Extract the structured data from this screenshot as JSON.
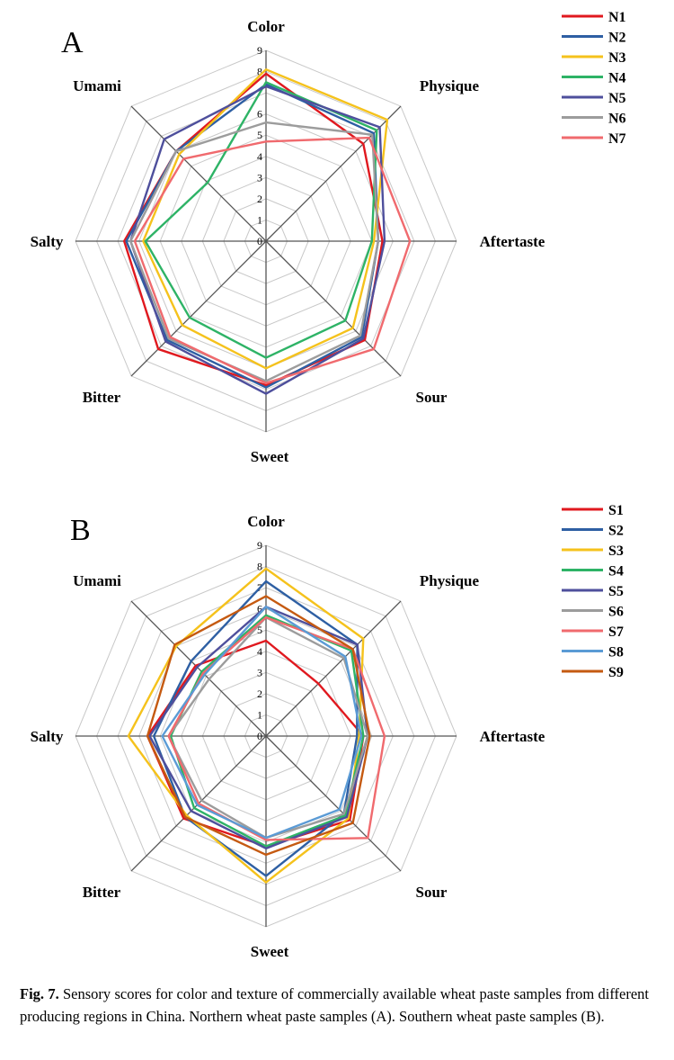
{
  "axes": [
    "Color",
    "Physique",
    "Aftertaste",
    "Sour",
    "Sweet",
    "Bitter",
    "Salty",
    "Umami"
  ],
  "ticks": [
    "0",
    "1",
    "2",
    "3",
    "4",
    "5",
    "6",
    "7",
    "8",
    "9"
  ],
  "caption": {
    "label": "Fig. 7.",
    "text": " Sensory scores for color and texture of commercially available wheat paste samples from different producing regions in China. Northern wheat paste samples (A). Southern wheat paste samples (B)."
  },
  "chart_data": [
    {
      "type": "radar",
      "panel": "A",
      "axes": [
        "Color",
        "Physique",
        "Aftertaste",
        "Sour",
        "Sweet",
        "Bitter",
        "Salty",
        "Umami"
      ],
      "rlim": [
        0,
        9
      ],
      "grid": true,
      "legend_position": "top-right",
      "series": [
        {
          "name": "N1",
          "color": "#e0191f",
          "values": [
            7.9,
            6.5,
            5.5,
            6.6,
            6.8,
            7.2,
            6.7,
            6.0
          ]
        },
        {
          "name": "N2",
          "color": "#2e5fa3",
          "values": [
            7.4,
            7.2,
            5.3,
            6.4,
            6.9,
            6.6,
            6.6,
            6.0
          ]
        },
        {
          "name": "N3",
          "color": "#f5c21c",
          "values": [
            8.1,
            8.1,
            5.1,
            5.8,
            6.0,
            5.6,
            5.8,
            5.8
          ]
        },
        {
          "name": "N4",
          "color": "#2eb366",
          "values": [
            7.5,
            7.4,
            5.0,
            5.3,
            5.5,
            5.1,
            5.7,
            3.9
          ]
        },
        {
          "name": "N5",
          "color": "#4e4f9c",
          "values": [
            7.3,
            7.6,
            5.6,
            6.5,
            7.2,
            6.7,
            6.4,
            6.8
          ]
        },
        {
          "name": "N6",
          "color": "#9c9c9c",
          "values": [
            5.6,
            7.1,
            5.3,
            6.3,
            6.6,
            6.5,
            6.4,
            6.0
          ]
        },
        {
          "name": "N7",
          "color": "#f06a6e",
          "values": [
            4.7,
            6.9,
            6.8,
            7.2,
            6.7,
            6.4,
            6.2,
            5.5
          ]
        }
      ]
    },
    {
      "type": "radar",
      "panel": "B",
      "axes": [
        "Color",
        "Physique",
        "Aftertaste",
        "Sour",
        "Sweet",
        "Bitter",
        "Salty",
        "Umami"
      ],
      "rlim": [
        0,
        9
      ],
      "grid": true,
      "legend_position": "top-right",
      "series": [
        {
          "name": "S1",
          "color": "#e0191f",
          "values": [
            4.5,
            3.5,
            4.6,
            5.6,
            5.2,
            5.5,
            5.6,
            4.7
          ]
        },
        {
          "name": "S2",
          "color": "#2e5fa3",
          "values": [
            7.3,
            6.1,
            4.3,
            5.2,
            6.6,
            5.4,
            5.3,
            5.0
          ]
        },
        {
          "name": "S3",
          "color": "#f5c21c",
          "values": [
            7.9,
            6.5,
            4.4,
            5.5,
            6.9,
            5.3,
            6.5,
            6.0
          ]
        },
        {
          "name": "S4",
          "color": "#2eb366",
          "values": [
            5.7,
            5.7,
            4.6,
            5.3,
            5.2,
            4.8,
            4.5,
            4.3
          ]
        },
        {
          "name": "S5",
          "color": "#4e4f9c",
          "values": [
            6.1,
            6.1,
            4.8,
            5.4,
            5.3,
            5.0,
            5.5,
            4.6
          ]
        },
        {
          "name": "S6",
          "color": "#9c9c9c",
          "values": [
            5.6,
            5.2,
            4.8,
            5.2,
            4.8,
            4.3,
            4.6,
            3.8
          ]
        },
        {
          "name": "S7",
          "color": "#f06a6e",
          "values": [
            5.6,
            5.8,
            5.6,
            6.8,
            4.9,
            4.5,
            4.6,
            4.2
          ]
        },
        {
          "name": "S8",
          "color": "#5b9bd5",
          "values": [
            6.1,
            5.3,
            4.5,
            4.9,
            4.8,
            4.6,
            4.9,
            4.1
          ]
        },
        {
          "name": "S9",
          "color": "#c55a11",
          "values": [
            6.6,
            5.8,
            4.9,
            5.8,
            5.6,
            5.4,
            5.6,
            6.1
          ]
        }
      ]
    }
  ]
}
